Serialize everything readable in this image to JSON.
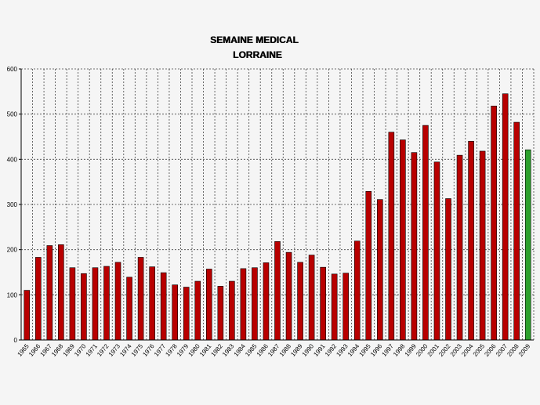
{
  "chart_data": {
    "type": "bar",
    "title_lines": [
      "SEMAINE MEDICAL",
      "LORRAINE"
    ],
    "xlabel": "",
    "ylabel": "",
    "ylim": [
      0,
      600
    ],
    "yticks": [
      "0",
      "100",
      "200",
      "300",
      "400",
      "500",
      "600"
    ],
    "grid": true,
    "categories": [
      "1965",
      "1966",
      "1967",
      "1968",
      "1969",
      "1970",
      "1971",
      "1972",
      "1973",
      "1974",
      "1975",
      "1976",
      "1977",
      "1978",
      "1979",
      "1980",
      "1981",
      "1982",
      "1983",
      "1984",
      "1985",
      "1986",
      "1987",
      "1988",
      "1989",
      "1990",
      "1991",
      "1992",
      "1993",
      "1994",
      "1995",
      "1996",
      "1997",
      "1998",
      "1999",
      "2000",
      "2001",
      "2002",
      "2003",
      "2004",
      "2005",
      "2006",
      "2007",
      "2008",
      "2009"
    ],
    "values": [
      110,
      183,
      209,
      211,
      160,
      147,
      160,
      163,
      172,
      139,
      183,
      162,
      149,
      122,
      117,
      130,
      157,
      119,
      130,
      158,
      160,
      171,
      218,
      194,
      172,
      188,
      161,
      146,
      148,
      219,
      329,
      311,
      460,
      443,
      415,
      475,
      394,
      313,
      409,
      440,
      418,
      518,
      545,
      482,
      421
    ],
    "colors": {
      "bar": "#b80000",
      "bar_highlight": "#2ca02c",
      "grid": "#444444",
      "axis": "#000000"
    },
    "highlight_categories": [
      "2009"
    ]
  }
}
